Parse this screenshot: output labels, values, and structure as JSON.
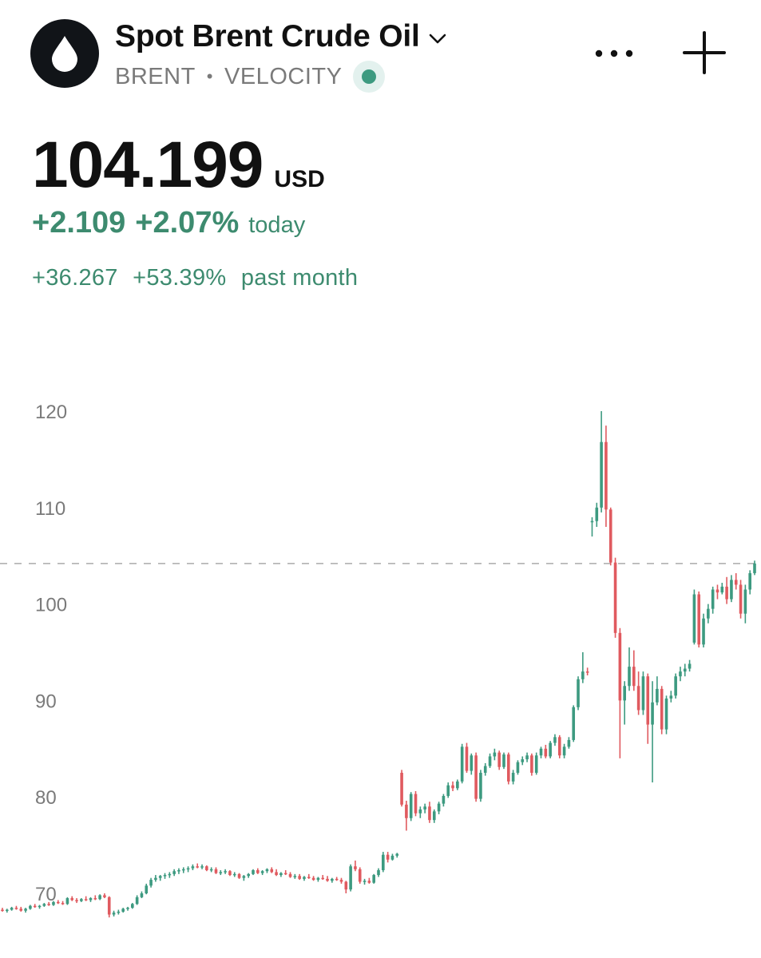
{
  "header": {
    "title": "Spot Brent Crude Oil",
    "symbol": "BRENT",
    "separator": "•",
    "source": "VELOCITY",
    "logo_icon": "oil-drop-icon",
    "title_icon": "chevron-down-icon",
    "menu_icon": "more-horizontal-icon",
    "add_icon": "plus-icon",
    "status": "live"
  },
  "quote": {
    "price": "104.199",
    "currency": "USD",
    "change_today": "+2.109",
    "change_today_pct": "+2.07%",
    "today_label": "today",
    "change_month": "+36.267",
    "change_month_pct": "+53.39%",
    "month_label": "past month"
  },
  "colors": {
    "up": "#3d9a80",
    "down": "#e05a5f",
    "text_positive": "#3d8b6f",
    "live_dot": "#3d9a80",
    "axis_label": "#7a7a7a"
  },
  "chart_data": {
    "type": "candlestick",
    "title": "",
    "xlabel": "",
    "ylabel": "",
    "ylim": [
      67,
      121
    ],
    "y_ticks": [
      70,
      80,
      90,
      100,
      110,
      120
    ],
    "grid": false,
    "current_price_line": 104.2,
    "candles": [
      [
        68.3,
        68.5,
        68.1,
        68.2
      ],
      [
        68.2,
        68.4,
        68.0,
        68.3
      ],
      [
        68.3,
        68.6,
        68.2,
        68.5
      ],
      [
        68.5,
        68.7,
        68.3,
        68.4
      ],
      [
        68.4,
        68.6,
        68.1,
        68.2
      ],
      [
        68.2,
        68.5,
        68.0,
        68.4
      ],
      [
        68.4,
        68.8,
        68.3,
        68.7
      ],
      [
        68.7,
        68.9,
        68.5,
        68.6
      ],
      [
        68.6,
        68.8,
        68.4,
        68.7
      ],
      [
        68.7,
        69.0,
        68.6,
        68.9
      ],
      [
        68.9,
        69.1,
        68.7,
        68.8
      ],
      [
        68.8,
        69.2,
        68.7,
        69.1
      ],
      [
        69.1,
        69.3,
        68.9,
        69.0
      ],
      [
        69.0,
        69.2,
        68.8,
        68.9
      ],
      [
        68.9,
        69.6,
        68.8,
        69.5
      ],
      [
        69.5,
        69.7,
        69.2,
        69.3
      ],
      [
        69.3,
        69.5,
        69.0,
        69.2
      ],
      [
        69.2,
        69.5,
        69.1,
        69.4
      ],
      [
        69.4,
        69.7,
        69.2,
        69.3
      ],
      [
        69.3,
        69.6,
        69.1,
        69.5
      ],
      [
        69.5,
        69.8,
        69.3,
        69.4
      ],
      [
        69.4,
        69.9,
        69.3,
        69.8
      ],
      [
        69.8,
        70.0,
        69.5,
        69.6
      ],
      [
        69.6,
        69.7,
        67.5,
        67.8
      ],
      [
        67.8,
        68.2,
        67.6,
        68.0
      ],
      [
        68.0,
        68.3,
        67.8,
        68.1
      ],
      [
        68.1,
        68.5,
        68.0,
        68.4
      ],
      [
        68.4,
        68.6,
        68.2,
        68.5
      ],
      [
        68.5,
        69.0,
        68.4,
        68.9
      ],
      [
        68.9,
        69.8,
        68.8,
        69.6
      ],
      [
        69.6,
        70.2,
        69.5,
        70.0
      ],
      [
        70.0,
        71.0,
        69.9,
        70.8
      ],
      [
        70.8,
        71.6,
        70.6,
        71.4
      ],
      [
        71.4,
        71.9,
        71.2,
        71.6
      ],
      [
        71.6,
        71.9,
        71.3,
        71.8
      ],
      [
        71.8,
        72.1,
        71.5,
        71.9
      ],
      [
        71.9,
        72.2,
        71.6,
        72.0
      ],
      [
        72.0,
        72.5,
        71.8,
        72.3
      ],
      [
        72.3,
        72.6,
        72.0,
        72.4
      ],
      [
        72.4,
        72.7,
        72.1,
        72.5
      ],
      [
        72.5,
        72.8,
        72.2,
        72.6
      ],
      [
        72.6,
        73.0,
        72.4,
        72.8
      ],
      [
        72.8,
        73.1,
        72.6,
        72.7
      ],
      [
        72.7,
        73.0,
        72.5,
        72.8
      ],
      [
        72.8,
        72.9,
        72.3,
        72.4
      ],
      [
        72.4,
        72.7,
        72.2,
        72.5
      ],
      [
        72.5,
        72.7,
        72.0,
        72.1
      ],
      [
        72.1,
        72.4,
        71.9,
        72.2
      ],
      [
        72.2,
        72.5,
        72.0,
        72.3
      ],
      [
        72.3,
        72.4,
        71.8,
        71.9
      ],
      [
        71.9,
        72.2,
        71.7,
        72.0
      ],
      [
        72.0,
        72.1,
        71.5,
        71.6
      ],
      [
        71.6,
        71.9,
        71.3,
        71.8
      ],
      [
        71.8,
        72.1,
        71.6,
        72.0
      ],
      [
        72.0,
        72.5,
        71.9,
        72.4
      ],
      [
        72.4,
        72.6,
        72.0,
        72.1
      ],
      [
        72.1,
        72.4,
        71.9,
        72.3
      ],
      [
        72.3,
        72.6,
        72.1,
        72.5
      ],
      [
        72.5,
        72.7,
        72.1,
        72.2
      ],
      [
        72.2,
        72.5,
        71.8,
        71.9
      ],
      [
        71.9,
        72.2,
        71.7,
        72.1
      ],
      [
        72.1,
        72.4,
        71.9,
        72.0
      ],
      [
        72.0,
        72.2,
        71.6,
        71.7
      ],
      [
        71.7,
        72.0,
        71.5,
        71.8
      ],
      [
        71.8,
        72.0,
        71.4,
        71.5
      ],
      [
        71.5,
        71.8,
        71.3,
        71.7
      ],
      [
        71.7,
        72.0,
        71.5,
        71.6
      ],
      [
        71.6,
        71.8,
        71.3,
        71.4
      ],
      [
        71.4,
        71.7,
        71.2,
        71.6
      ],
      [
        71.6,
        71.9,
        71.4,
        71.5
      ],
      [
        71.5,
        71.8,
        71.2,
        71.3
      ],
      [
        71.3,
        71.6,
        71.1,
        71.5
      ],
      [
        71.5,
        71.7,
        71.3,
        71.4
      ],
      [
        71.4,
        71.6,
        71.0,
        71.2
      ],
      [
        71.2,
        71.3,
        70.0,
        70.4
      ],
      [
        70.4,
        73.0,
        70.2,
        72.8
      ],
      [
        72.8,
        73.4,
        72.3,
        72.5
      ],
      [
        72.5,
        72.7,
        71.0,
        71.2
      ],
      [
        71.2,
        71.5,
        70.9,
        71.3
      ],
      [
        71.3,
        71.6,
        71.0,
        71.1
      ],
      [
        71.1,
        72.0,
        71.0,
        71.9
      ],
      [
        71.9,
        72.6,
        71.7,
        72.4
      ],
      [
        72.4,
        74.3,
        72.2,
        74.0
      ],
      [
        74.0,
        74.3,
        73.2,
        73.5
      ],
      [
        73.5,
        74.1,
        73.4,
        73.9
      ],
      [
        73.9,
        74.2,
        73.7,
        74.1
      ],
      [
        82.5,
        82.8,
        79.0,
        79.2
      ],
      [
        79.2,
        79.6,
        76.5,
        77.8
      ],
      [
        77.8,
        80.5,
        77.5,
        80.3
      ],
      [
        80.3,
        80.6,
        78.0,
        78.3
      ],
      [
        78.3,
        79.0,
        77.8,
        78.7
      ],
      [
        78.7,
        79.3,
        78.3,
        79.0
      ],
      [
        79.0,
        79.5,
        77.3,
        77.6
      ],
      [
        77.6,
        78.7,
        77.3,
        78.5
      ],
      [
        78.5,
        79.5,
        78.2,
        79.3
      ],
      [
        79.3,
        80.3,
        79.0,
        80.1
      ],
      [
        80.1,
        81.5,
        79.9,
        81.2
      ],
      [
        81.2,
        81.6,
        80.6,
        80.9
      ],
      [
        80.9,
        81.8,
        80.7,
        81.6
      ],
      [
        81.6,
        85.5,
        81.4,
        85.2
      ],
      [
        85.2,
        85.6,
        82.5,
        82.7
      ],
      [
        82.7,
        84.5,
        82.3,
        84.3
      ],
      [
        84.3,
        84.6,
        79.5,
        79.8
      ],
      [
        79.8,
        82.8,
        79.5,
        82.5
      ],
      [
        82.5,
        83.5,
        82.2,
        83.2
      ],
      [
        83.2,
        84.5,
        83.0,
        84.2
      ],
      [
        84.2,
        85.0,
        83.8,
        84.6
      ],
      [
        84.6,
        84.8,
        82.8,
        83.1
      ],
      [
        83.1,
        84.6,
        82.9,
        84.4
      ],
      [
        84.4,
        84.6,
        81.3,
        81.6
      ],
      [
        81.6,
        82.8,
        81.3,
        82.5
      ],
      [
        82.5,
        83.8,
        82.3,
        83.6
      ],
      [
        83.6,
        84.2,
        83.3,
        83.9
      ],
      [
        83.9,
        84.6,
        83.6,
        84.3
      ],
      [
        84.3,
        84.5,
        82.2,
        82.5
      ],
      [
        82.5,
        84.6,
        82.3,
        84.3
      ],
      [
        84.3,
        85.2,
        84.0,
        85.0
      ],
      [
        85.0,
        85.4,
        84.0,
        84.2
      ],
      [
        84.2,
        85.8,
        84.0,
        85.6
      ],
      [
        85.6,
        86.5,
        85.3,
        86.2
      ],
      [
        86.2,
        86.4,
        84.0,
        84.3
      ],
      [
        84.3,
        85.5,
        84.0,
        85.2
      ],
      [
        85.2,
        86.2,
        85.0,
        85.9
      ],
      [
        85.9,
        89.5,
        85.7,
        89.3
      ],
      [
        89.3,
        92.5,
        89.0,
        92.2
      ],
      [
        92.2,
        95.0,
        91.8,
        93.0
      ],
      [
        93.0,
        93.4,
        92.6,
        92.9
      ],
      [
        108.5,
        109.0,
        107.0,
        108.6
      ],
      [
        108.6,
        110.5,
        108.0,
        110.0
      ],
      [
        110.0,
        120.0,
        109.5,
        116.8
      ],
      [
        116.8,
        118.5,
        108.0,
        109.8
      ],
      [
        109.8,
        110.0,
        104.0,
        104.3
      ],
      [
        104.3,
        104.8,
        96.5,
        97.0
      ],
      [
        97.0,
        97.5,
        84.0,
        90.0
      ],
      [
        90.0,
        92.0,
        87.5,
        91.5
      ],
      [
        91.5,
        95.5,
        91.0,
        93.5
      ],
      [
        93.5,
        95.2,
        91.0,
        91.5
      ],
      [
        91.5,
        93.0,
        88.5,
        89.0
      ],
      [
        89.0,
        93.0,
        88.5,
        92.5
      ],
      [
        92.5,
        92.8,
        85.5,
        87.5
      ],
      [
        87.5,
        92.0,
        81.5,
        89.8
      ],
      [
        89.8,
        92.5,
        89.5,
        91.2
      ],
      [
        91.2,
        91.5,
        86.5,
        87.0
      ],
      [
        87.0,
        90.5,
        86.5,
        90.2
      ],
      [
        90.2,
        91.0,
        89.8,
        90.5
      ],
      [
        90.5,
        92.8,
        90.2,
        92.5
      ],
      [
        92.5,
        93.5,
        92.0,
        93.0
      ],
      [
        93.0,
        93.8,
        92.5,
        93.3
      ],
      [
        93.3,
        94.2,
        93.0,
        93.8
      ],
      [
        96.0,
        101.5,
        95.8,
        101.0
      ],
      [
        101.0,
        101.3,
        95.5,
        95.8
      ],
      [
        95.8,
        99.0,
        95.5,
        98.5
      ],
      [
        98.5,
        100.0,
        98.0,
        99.5
      ],
      [
        99.5,
        101.8,
        99.0,
        101.5
      ],
      [
        101.5,
        102.0,
        100.5,
        101.2
      ],
      [
        101.2,
        102.2,
        101.0,
        101.8
      ],
      [
        101.8,
        102.8,
        100.0,
        100.5
      ],
      [
        100.5,
        103.0,
        100.2,
        102.5
      ],
      [
        102.5,
        103.2,
        101.5,
        102.0
      ],
      [
        102.0,
        102.5,
        98.5,
        99.0
      ],
      [
        99.0,
        102.0,
        98.0,
        101.5
      ],
      [
        101.5,
        103.5,
        101.0,
        103.2
      ],
      [
        103.2,
        104.5,
        103.0,
        104.2
      ]
    ]
  }
}
